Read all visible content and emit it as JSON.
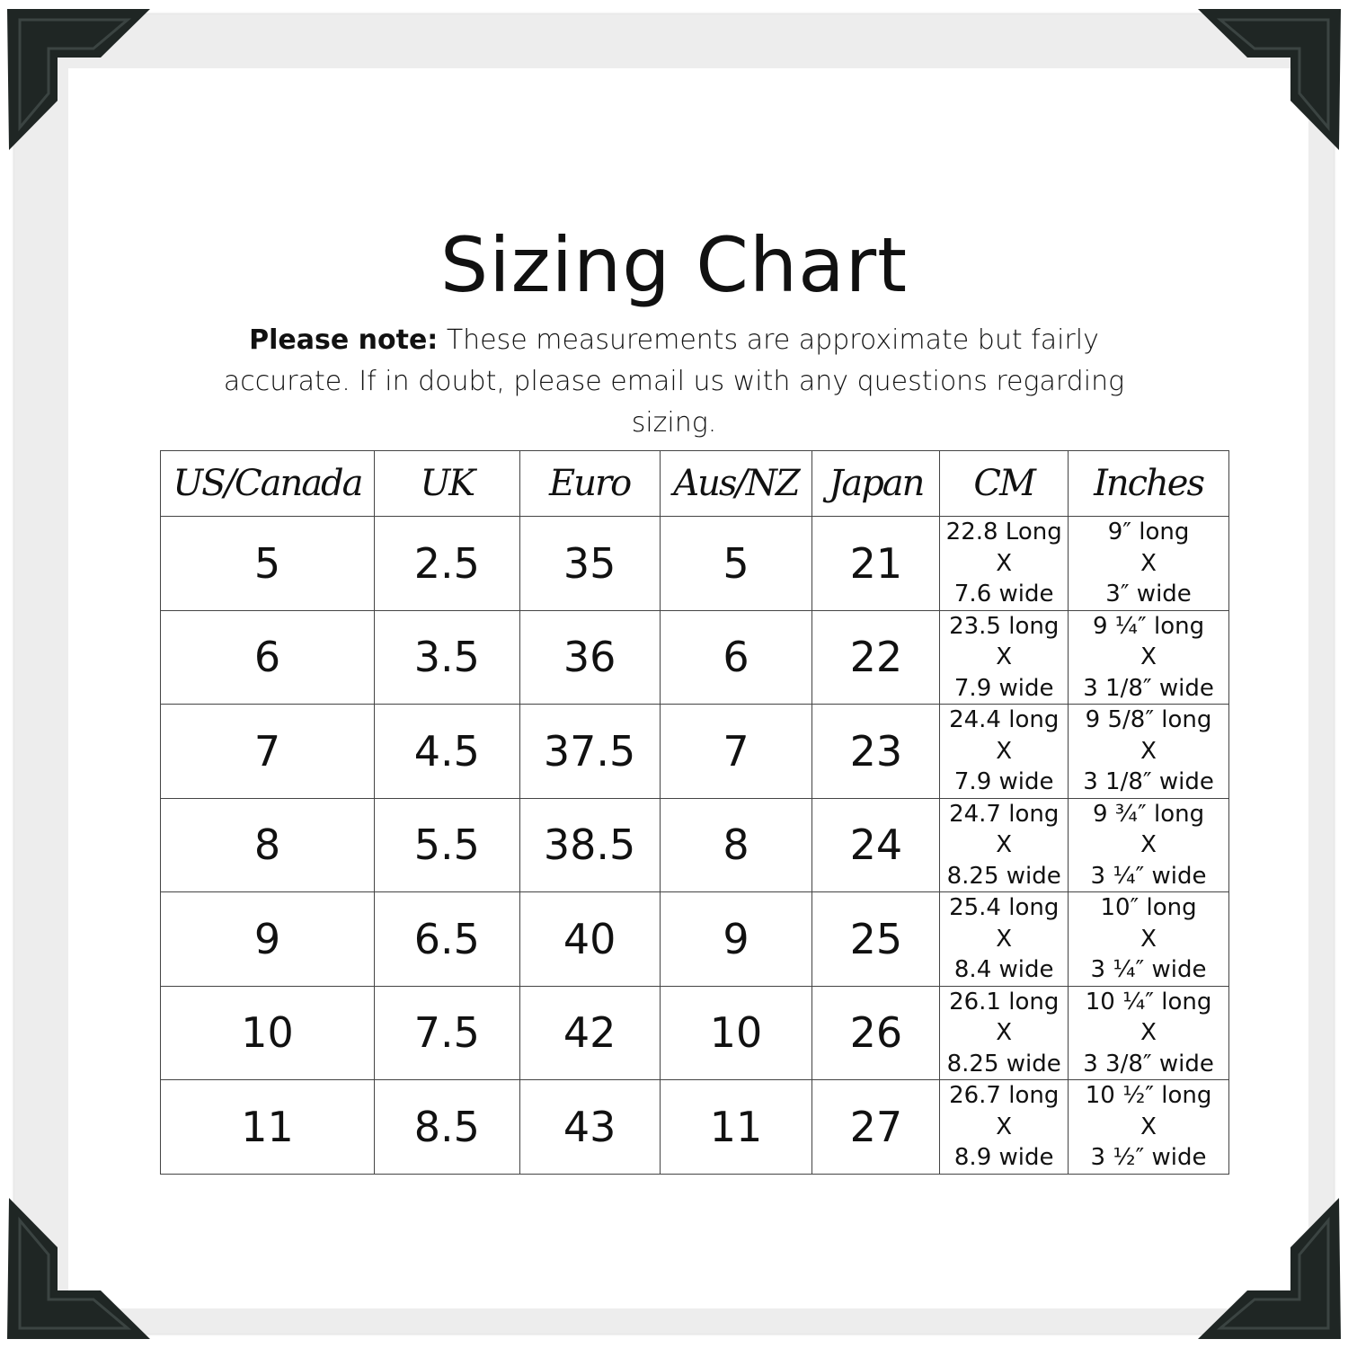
{
  "title": "Sizing Chart",
  "note": {
    "label": "Please note:",
    "text": " These measurements are approximate but fairly accurate. If in doubt, please email us with any questions regarding sizing."
  },
  "colors": {
    "frame": "#ededed",
    "corner": "#1f2624",
    "text": "#111111"
  },
  "table": {
    "headers": [
      "US/Canada",
      "UK",
      "Euro",
      "Aus/NZ",
      "Japan",
      "CM",
      "Inches"
    ],
    "rows": [
      {
        "us": "5",
        "uk": "2.5",
        "euro": "35",
        "aus": "5",
        "japan": "21",
        "cm": [
          "22.8 Long",
          "X",
          "7.6 wide"
        ],
        "inches": [
          "9″ long",
          "X",
          "3″ wide"
        ]
      },
      {
        "us": "6",
        "uk": "3.5",
        "euro": "36",
        "aus": "6",
        "japan": "22",
        "cm": [
          "23.5 long",
          "X",
          "7.9 wide"
        ],
        "inches": [
          "9 ¼″ long",
          "X",
          "3 1/8″ wide"
        ]
      },
      {
        "us": "7",
        "uk": "4.5",
        "euro": "37.5",
        "aus": "7",
        "japan": "23",
        "cm": [
          "24.4 long",
          "X",
          "7.9 wide"
        ],
        "inches": [
          "9 5/8″ long",
          "X",
          "3 1/8″ wide"
        ]
      },
      {
        "us": "8",
        "uk": "5.5",
        "euro": "38.5",
        "aus": "8",
        "japan": "24",
        "cm": [
          "24.7 long",
          "X",
          "8.25 wide"
        ],
        "inches": [
          "9 ¾″ long",
          "X",
          "3 ¼″ wide"
        ]
      },
      {
        "us": "9",
        "uk": "6.5",
        "euro": "40",
        "aus": "9",
        "japan": "25",
        "cm": [
          "25.4 long",
          "X",
          "8.4 wide"
        ],
        "inches": [
          "10″ long",
          "X",
          "3 ¼″ wide"
        ]
      },
      {
        "us": "10",
        "uk": "7.5",
        "euro": "42",
        "aus": "10",
        "japan": "26",
        "cm": [
          "26.1 long",
          "X",
          "8.25 wide"
        ],
        "inches": [
          "10 ¼″ long",
          "X",
          "3 3/8″ wide"
        ]
      },
      {
        "us": "11",
        "uk": "8.5",
        "euro": "43",
        "aus": "11",
        "japan": "27",
        "cm": [
          "26.7 long",
          "X",
          "8.9 wide"
        ],
        "inches": [
          "10 ½″ long",
          "X",
          "3 ½″ wide"
        ]
      }
    ]
  }
}
